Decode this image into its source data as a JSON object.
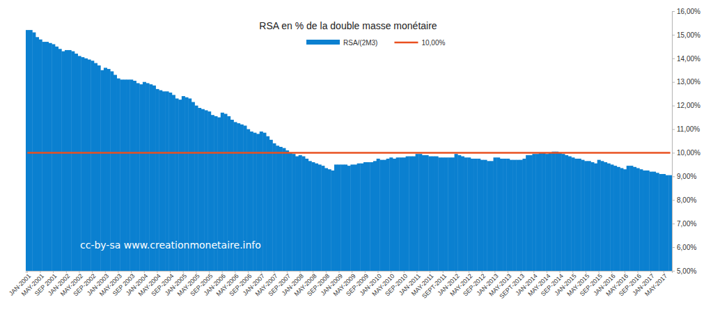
{
  "chart_data": {
    "type": "bar",
    "title": "RSA en % de la double masse monétaire",
    "annotation": "cc-by-sa www.creationmonetaire.info",
    "legend": "top",
    "grid": false,
    "categories": [
      "JAN-2001",
      null,
      null,
      null,
      "MAY-2001",
      null,
      null,
      null,
      "SEP 2001",
      null,
      null,
      null,
      "JAN-2002",
      null,
      null,
      null,
      "MAY-2002",
      null,
      null,
      null,
      "SEP-2002",
      null,
      null,
      null,
      "JAN-2003",
      null,
      null,
      null,
      "MAY-2003",
      null,
      null,
      null,
      "SEP 2003",
      null,
      null,
      null,
      "JAN-2004",
      null,
      null,
      null,
      "MAY-2004",
      null,
      null,
      null,
      "SEP-2004",
      null,
      null,
      null,
      "JAN-2005",
      null,
      null,
      null,
      "MAY-2005",
      null,
      null,
      null,
      "SEP-2005",
      null,
      null,
      null,
      "JAN-2006",
      null,
      null,
      null,
      "MAY-2006",
      null,
      null,
      null,
      "SEP-2006",
      null,
      null,
      null,
      "JAN-2007",
      null,
      null,
      null,
      "MAY-2007",
      null,
      null,
      null,
      "SEP-2007",
      null,
      null,
      null,
      "JAN-2008",
      null,
      null,
      null,
      "MAY-2008",
      null,
      null,
      null,
      "SEP-2008",
      null,
      null,
      null,
      "JAN-2009",
      null,
      null,
      null,
      "MAY-2009",
      null,
      null,
      null,
      "SEP-2009",
      null,
      null,
      null,
      "JAN-2010",
      null,
      null,
      null,
      "MAY-2010",
      null,
      null,
      null,
      "SEP-2010",
      null,
      null,
      null,
      "JAN-2011",
      null,
      null,
      null,
      "MAY-2011",
      null,
      null,
      null,
      "SEPT-2011",
      null,
      null,
      null,
      "JAN-2012",
      null,
      null,
      null,
      "MAY-2012",
      null,
      null,
      null,
      "SEP-2012",
      null,
      null,
      null,
      "JAN-2013",
      null,
      null,
      null,
      "MAY-2013",
      null,
      null,
      null,
      "SEPT-2013",
      null,
      null,
      null,
      "JAN-2014",
      null,
      null,
      null,
      "MAY-2014",
      null,
      null,
      null,
      "SEP-2014",
      null,
      null,
      null,
      "JAN-2015",
      null,
      null,
      null,
      "MAY-2015",
      null,
      null,
      null,
      "SEP-2015",
      null,
      null,
      null,
      "JAN-2016",
      null,
      null,
      null,
      "MAY-2016",
      null,
      null,
      null,
      "SEP-2016",
      null,
      null,
      null,
      "JAN-2017",
      null,
      null,
      null,
      "MAY-2017",
      null,
      null
    ],
    "series": [
      {
        "name": "RSA/(2M3)",
        "type": "bar",
        "color": "#0b80d0",
        "values": [
          15.2,
          15.2,
          15.1,
          14.9,
          14.8,
          14.7,
          14.7,
          14.65,
          14.6,
          14.5,
          14.4,
          14.3,
          14.35,
          14.35,
          14.3,
          14.2,
          14.1,
          14.05,
          14.0,
          13.95,
          13.9,
          13.8,
          13.7,
          13.5,
          13.6,
          13.55,
          13.45,
          13.3,
          13.15,
          13.1,
          13.1,
          13.1,
          13.1,
          13.05,
          12.95,
          12.9,
          13.0,
          12.95,
          12.9,
          12.85,
          12.7,
          12.65,
          12.6,
          12.6,
          12.55,
          12.45,
          12.3,
          12.25,
          12.4,
          12.35,
          12.3,
          12.15,
          12.0,
          11.9,
          11.85,
          11.8,
          11.75,
          11.6,
          11.55,
          11.5,
          11.7,
          11.65,
          11.55,
          11.4,
          11.3,
          11.25,
          11.2,
          11.15,
          11.0,
          10.9,
          10.85,
          10.8,
          10.9,
          10.85,
          10.7,
          10.55,
          10.4,
          10.3,
          10.25,
          10.2,
          10.1,
          10.0,
          9.95,
          9.85,
          9.9,
          9.85,
          9.75,
          9.65,
          9.6,
          9.55,
          9.5,
          9.45,
          9.35,
          9.3,
          9.25,
          9.5,
          9.5,
          9.5,
          9.5,
          9.45,
          9.5,
          9.5,
          9.55,
          9.55,
          9.6,
          9.6,
          9.6,
          9.65,
          9.75,
          9.7,
          9.7,
          9.75,
          9.8,
          9.75,
          9.8,
          9.8,
          9.8,
          9.85,
          9.85,
          9.85,
          9.95,
          9.95,
          9.9,
          9.9,
          9.85,
          9.85,
          9.85,
          9.8,
          9.8,
          9.8,
          9.8,
          9.8,
          9.95,
          9.9,
          9.85,
          9.8,
          9.8,
          9.75,
          9.75,
          9.75,
          9.7,
          9.7,
          9.65,
          9.65,
          9.8,
          9.8,
          9.75,
          9.75,
          9.75,
          9.7,
          9.7,
          9.7,
          9.7,
          9.75,
          9.9,
          9.9,
          9.95,
          9.95,
          10.0,
          10.0,
          9.95,
          10.0,
          10.05,
          10.05,
          10.0,
          9.95,
          9.9,
          9.85,
          9.8,
          9.75,
          9.75,
          9.7,
          9.65,
          9.65,
          9.6,
          9.55,
          9.7,
          9.65,
          9.6,
          9.55,
          9.5,
          9.45,
          9.4,
          9.35,
          9.3,
          9.45,
          9.45,
          9.4,
          9.35,
          9.3,
          9.25,
          9.25,
          9.2,
          9.2,
          9.15,
          9.1,
          9.1,
          9.05,
          9.05
        ]
      },
      {
        "name": "10,00%",
        "type": "line",
        "color": "#e9501f",
        "values": [
          10,
          10,
          10,
          10,
          10,
          10,
          10,
          10,
          10,
          10,
          10,
          10,
          10,
          10,
          10,
          10,
          10,
          10,
          10,
          10,
          10,
          10,
          10,
          10,
          10,
          10,
          10,
          10,
          10,
          10,
          10,
          10,
          10,
          10,
          10,
          10,
          10,
          10,
          10,
          10,
          10,
          10,
          10,
          10,
          10,
          10,
          10,
          10,
          10,
          10,
          10,
          10,
          10,
          10,
          10,
          10,
          10,
          10,
          10,
          10,
          10,
          10,
          10,
          10,
          10,
          10,
          10,
          10,
          10,
          10,
          10,
          10,
          10,
          10,
          10,
          10,
          10,
          10,
          10,
          10,
          10,
          10,
          10,
          10,
          10,
          10,
          10,
          10,
          10,
          10,
          10,
          10,
          10,
          10,
          10,
          10,
          10,
          10,
          10,
          10,
          10,
          10,
          10,
          10,
          10,
          10,
          10,
          10,
          10,
          10,
          10,
          10,
          10,
          10,
          10,
          10,
          10,
          10,
          10,
          10,
          10,
          10,
          10,
          10,
          10,
          10,
          10,
          10,
          10,
          10,
          10,
          10,
          10,
          10,
          10,
          10,
          10,
          10,
          10,
          10,
          10,
          10,
          10,
          10,
          10,
          10,
          10,
          10,
          10,
          10,
          10,
          10,
          10,
          10,
          10,
          10,
          10,
          10,
          10,
          10,
          10,
          10,
          10,
          10,
          10,
          10,
          10,
          10,
          10,
          10,
          10,
          10,
          10,
          10,
          10,
          10,
          10,
          10,
          10,
          10,
          10,
          10,
          10,
          10,
          10,
          10,
          10,
          10,
          10,
          10,
          10,
          10,
          10,
          10,
          10,
          10,
          10,
          10,
          10
        ]
      }
    ],
    "ylim": [
      5,
      16
    ],
    "yticks": [
      {
        "value": 5,
        "label": "5,00%"
      },
      {
        "value": 6,
        "label": "6,00%"
      },
      {
        "value": 7,
        "label": "7,00%"
      },
      {
        "value": 8,
        "label": "8,00%"
      },
      {
        "value": 9,
        "label": "9,00%"
      },
      {
        "value": 10,
        "label": "10,00%"
      },
      {
        "value": 11,
        "label": "11,00%"
      },
      {
        "value": 12,
        "label": "12,00%"
      },
      {
        "value": 13,
        "label": "13,00%"
      },
      {
        "value": 14,
        "label": "14,00%"
      },
      {
        "value": 15,
        "label": "15,00%"
      },
      {
        "value": 16,
        "label": "16,00%"
      }
    ]
  }
}
